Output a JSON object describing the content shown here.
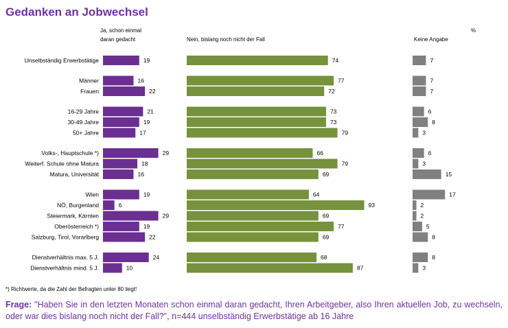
{
  "chart_data": {
    "type": "bar",
    "title": "Gedanken an Jobwechsel",
    "unit": "%",
    "series": [
      {
        "name": "Ja, schon einmal daran gedacht",
        "color": "#6a2f91"
      },
      {
        "name": "Nein, bislang noch nicht der Fall",
        "color": "#76923c"
      },
      {
        "name": "Keine Angabe",
        "color": "#808080"
      }
    ],
    "groups": [
      {
        "rows": [
          {
            "label": "Unselbständig Erwerbstätige",
            "values": [
              19,
              74,
              7
            ]
          }
        ]
      },
      {
        "rows": [
          {
            "label": "Männer",
            "values": [
              16,
              77,
              7
            ]
          },
          {
            "label": "Frauen",
            "values": [
              22,
              72,
              7
            ]
          }
        ]
      },
      {
        "rows": [
          {
            "label": "16-29 Jahre",
            "values": [
              21,
              73,
              6
            ]
          },
          {
            "label": "30-49 Jahre",
            "values": [
              19,
              73,
              8
            ]
          },
          {
            "label": "50+ Jahre",
            "values": [
              17,
              79,
              3
            ]
          }
        ]
      },
      {
        "rows": [
          {
            "label": "Volks-, Hauptschule *)",
            "values": [
              29,
              66,
              6
            ]
          },
          {
            "label": "Weiterf. Schule ohne Matura",
            "values": [
              18,
              79,
              3
            ]
          },
          {
            "label": "Matura, Universität",
            "values": [
              16,
              69,
              15
            ]
          }
        ]
      },
      {
        "rows": [
          {
            "label": "Wien",
            "values": [
              19,
              64,
              17
            ]
          },
          {
            "label": "NÖ, Burgenland",
            "values": [
              6,
              93,
              2
            ]
          },
          {
            "label": "Steiermark, Kärnten",
            "values": [
              29,
              69,
              2
            ]
          },
          {
            "label": "Oberösterreich *)",
            "values": [
              19,
              77,
              5
            ]
          },
          {
            "label": "Salzburg, Tirol, Vorarlberg",
            "values": [
              22,
              69,
              8
            ]
          }
        ]
      },
      {
        "rows": [
          {
            "label": "Dienstverhältnis max. 5 J.",
            "values": [
              24,
              68,
              8
            ]
          },
          {
            "label": "Dienstverhältnis mind. 5 J.",
            "values": [
              10,
              87,
              3
            ]
          }
        ]
      }
    ],
    "footnote": "*) Richtwerte, da die Zahl der Befragten unter 80 liegt!"
  },
  "question": {
    "label": "Frage:",
    "text": "\"Haben Sie in den letzten Monaten schon einmal daran gedacht, Ihren Arbeitgeber, also Ihren aktuellen Job, zu wechseln, oder war dies bislang noch nicht der Fall?\", n=444 unselbständig Erwerbstätige ab 16 Jahre"
  }
}
